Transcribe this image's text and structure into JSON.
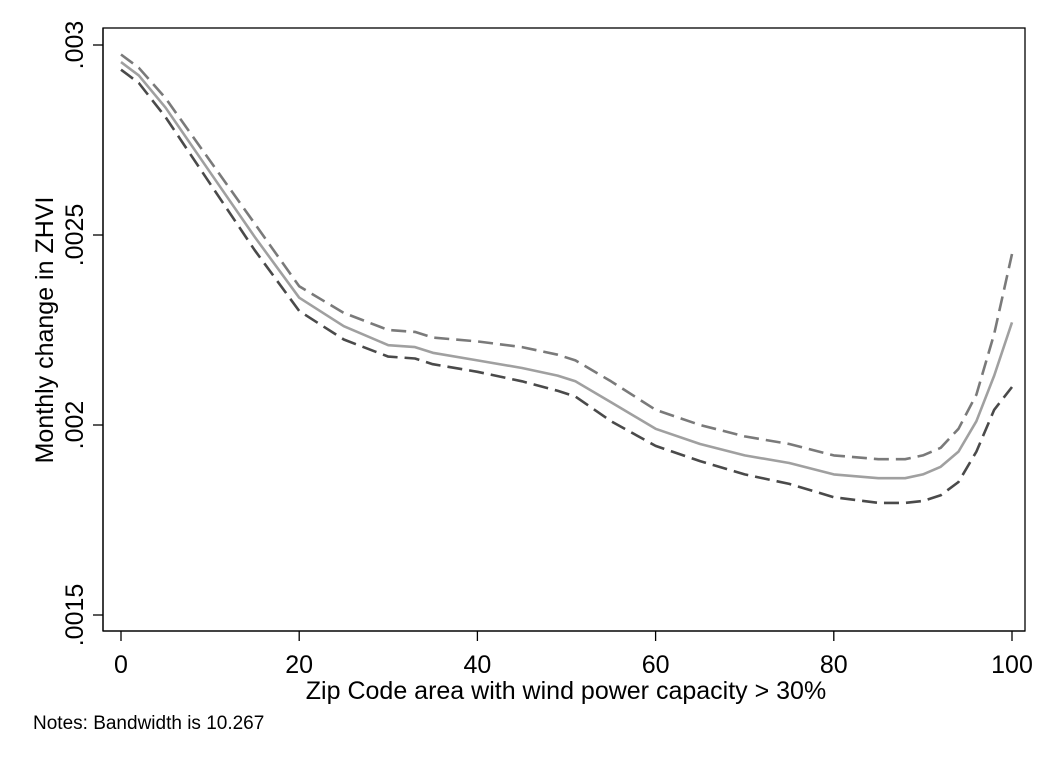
{
  "chart_data": {
    "type": "line",
    "xlabel": "Zip Code area with wind power capacity > 30%",
    "ylabel": "Monthly change in ZHVI",
    "xlim": [
      0,
      100
    ],
    "ylim": [
      0.0015,
      0.003
    ],
    "x_ticks": [
      0,
      20,
      40,
      60,
      80,
      100
    ],
    "x_tick_labels": [
      "0",
      "20",
      "40",
      "60",
      "80",
      "100"
    ],
    "y_ticks": [
      0.0015,
      0.002,
      0.0025,
      0.003
    ],
    "y_tick_labels": [
      ".0015",
      ".002",
      ".0025",
      ".003"
    ],
    "grid": false,
    "series": [
      {
        "style": "solid",
        "color": "#a0a0a0",
        "x": [
          0,
          2,
          5,
          10,
          15,
          20,
          25,
          30,
          33,
          35,
          40,
          45,
          49,
          51,
          55,
          60,
          65,
          70,
          75,
          80,
          85,
          88,
          90,
          92,
          94,
          96,
          98,
          100
        ],
        "y": [
          0.002955,
          0.00292,
          0.002835,
          0.002665,
          0.002495,
          0.002335,
          0.00226,
          0.00221,
          0.002205,
          0.00219,
          0.00217,
          0.00215,
          0.00213,
          0.002115,
          0.00206,
          0.00199,
          0.00195,
          0.00192,
          0.0019,
          0.00187,
          0.00186,
          0.00186,
          0.00187,
          0.00189,
          0.00193,
          0.00201,
          0.00213,
          0.00227
        ]
      },
      {
        "style": "dashed",
        "color": "#7a7a7a",
        "x": [
          0,
          2,
          5,
          10,
          15,
          20,
          25,
          30,
          33,
          35,
          40,
          45,
          49,
          51,
          55,
          60,
          65,
          70,
          75,
          80,
          85,
          88,
          90,
          92,
          94,
          96,
          98,
          100
        ],
        "y": [
          0.002975,
          0.00294,
          0.00286,
          0.002695,
          0.00253,
          0.002365,
          0.002295,
          0.00225,
          0.002245,
          0.00223,
          0.00222,
          0.002205,
          0.002185,
          0.00217,
          0.002115,
          0.00204,
          0.002,
          0.00197,
          0.00195,
          0.00192,
          0.00191,
          0.00191,
          0.00192,
          0.00194,
          0.00199,
          0.00208,
          0.00224,
          0.00245
        ]
      },
      {
        "style": "dashed",
        "color": "#4a4a4a",
        "x": [
          0,
          2,
          5,
          10,
          15,
          20,
          25,
          30,
          33,
          35,
          40,
          45,
          49,
          51,
          55,
          60,
          65,
          70,
          75,
          80,
          85,
          88,
          90,
          92,
          94,
          96,
          98,
          100
        ],
        "y": [
          0.002935,
          0.0029,
          0.00281,
          0.002635,
          0.00246,
          0.0023,
          0.002225,
          0.00218,
          0.002175,
          0.00216,
          0.00214,
          0.002115,
          0.00209,
          0.002075,
          0.00201,
          0.001945,
          0.001905,
          0.00187,
          0.001845,
          0.00181,
          0.001795,
          0.001795,
          0.0018,
          0.001815,
          0.00185,
          0.00193,
          0.00204,
          0.0021
        ]
      }
    ]
  },
  "notes": "Notes: Bandwidth is 10.267"
}
